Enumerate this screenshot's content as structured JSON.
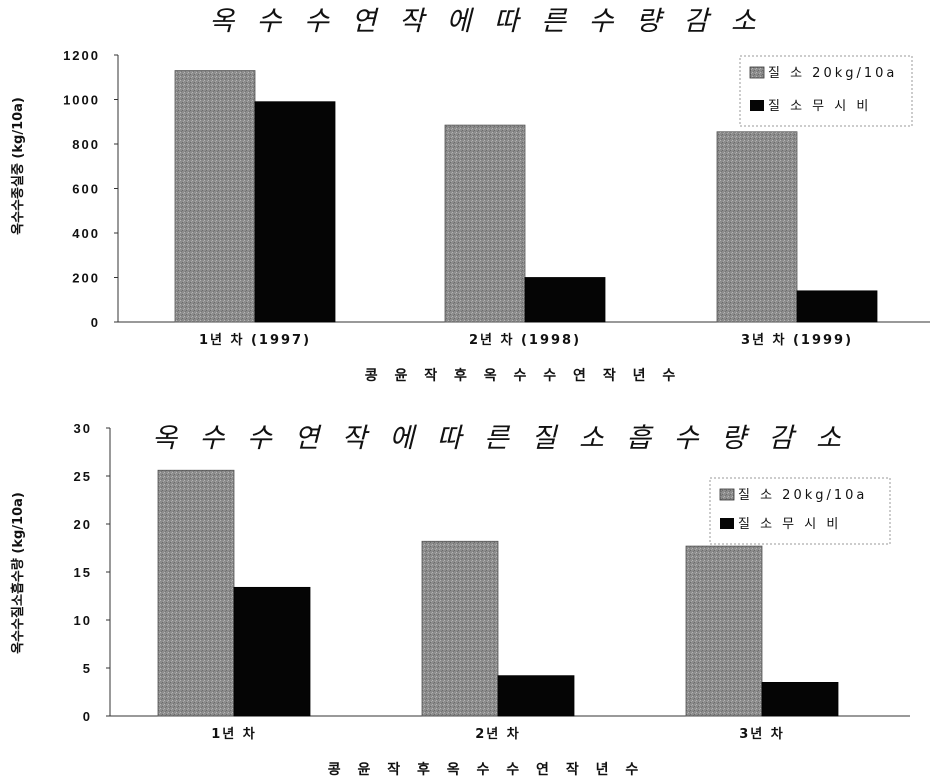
{
  "colors": {
    "series1": "#8c8c8c",
    "series2": "#050505"
  },
  "chart_data": [
    {
      "type": "bar",
      "title": "옥 수 수   연 작 에   따 른   수 량 감 소",
      "ylabel": "옥수수종실중 (kg/10a)",
      "xlabel": "콩 윤 작 후   옥 수 수 연 작 년 수",
      "categories": [
        "1년 차 (1997)",
        "2년 차 (1998)",
        "3년 차 (1999)"
      ],
      "yticks": [
        "0",
        "200",
        "400",
        "600",
        "800",
        "1000",
        "1200"
      ],
      "ylim": [
        0,
        1200
      ],
      "legend_position": "top-right",
      "series": [
        {
          "name": "질 소 20kg/10a",
          "values": [
            1130,
            885,
            855
          ]
        },
        {
          "name": "질 소 무 시 비",
          "values": [
            990,
            200,
            140
          ]
        }
      ]
    },
    {
      "type": "bar",
      "title": "옥 수 수   연 작 에   따 른   질 소 흡 수 량   감 소",
      "ylabel": "옥수수질소흡수량 (kg/10a)",
      "xlabel": "콩 윤 작 후   옥 수 수 연 작 년 수",
      "categories": [
        "1년 차",
        "2년 차",
        "3년 차"
      ],
      "yticks": [
        "0",
        "5",
        "10",
        "15",
        "20",
        "25",
        "30"
      ],
      "ylim": [
        0,
        30
      ],
      "legend_position": "top-right",
      "series": [
        {
          "name": "질 소 20kg/10a",
          "values": [
            25.6,
            18.2,
            17.7
          ]
        },
        {
          "name": "질 소 무 시 비",
          "values": [
            13.4,
            4.2,
            3.5
          ]
        }
      ]
    }
  ]
}
